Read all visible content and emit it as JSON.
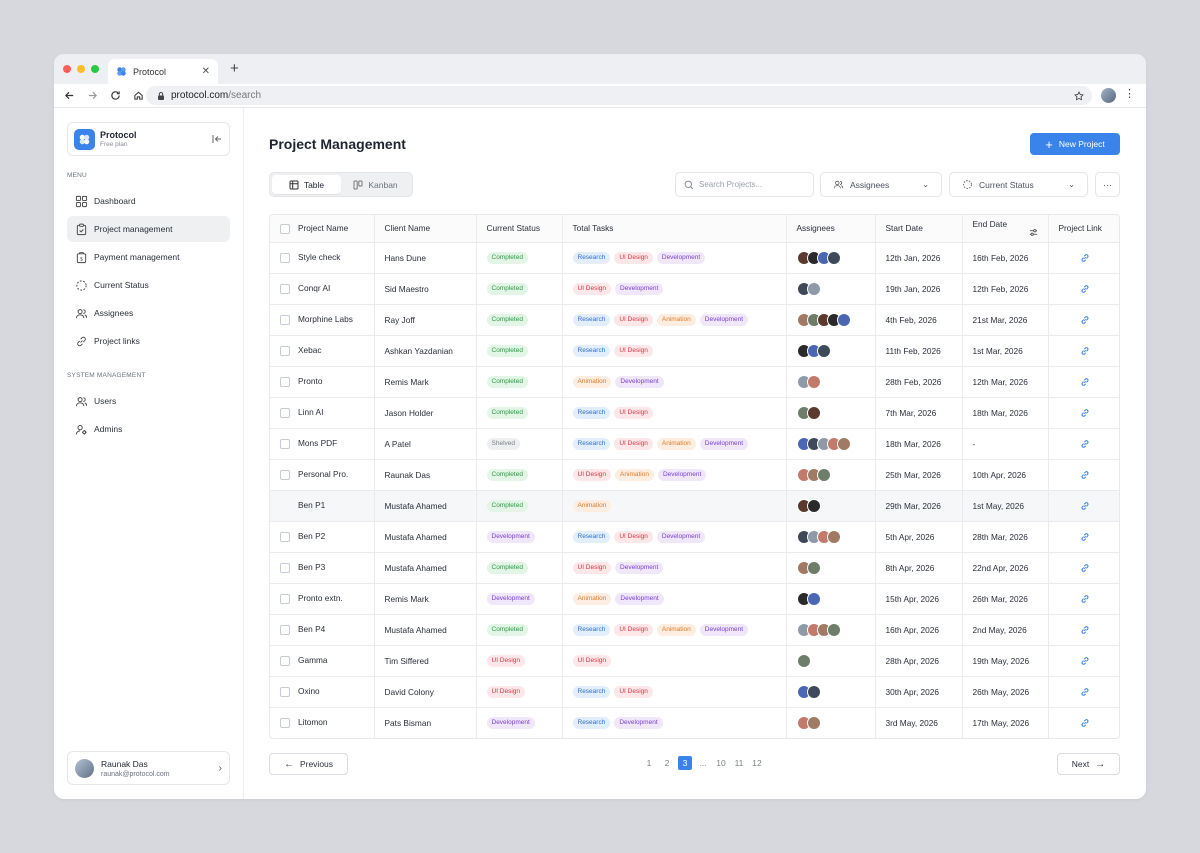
{
  "browser": {
    "tab_title": "Protocol",
    "url_host": "protocol.com",
    "url_path": "/search",
    "traffic_colors": [
      "#ff5f57",
      "#febc2e",
      "#28c840"
    ]
  },
  "sidebar": {
    "brand_name": "Protocol",
    "brand_plan": "Free plan",
    "menu_label": "MENU",
    "menu_items": [
      {
        "label": "Dashboard",
        "icon": "grid-icon"
      },
      {
        "label": "Project management",
        "icon": "clipboard-icon"
      },
      {
        "label": "Payment management",
        "icon": "wallet-icon"
      },
      {
        "label": "Current Status",
        "icon": "status-circle-icon"
      },
      {
        "label": "Assignees",
        "icon": "users-icon"
      },
      {
        "label": "Project links",
        "icon": "link-icon"
      }
    ],
    "system_label": "SYSTEM MANAGEMENT",
    "system_items": [
      {
        "label": "Users",
        "icon": "users-icon"
      },
      {
        "label": "Admins",
        "icon": "admin-icon"
      }
    ],
    "user": {
      "name": "Raunak Das",
      "email": "raunak@protocol.com"
    }
  },
  "main": {
    "title": "Project Management",
    "new_project_label": "New Project",
    "views": [
      "Table",
      "Kanban"
    ],
    "search_placeholder": "Search Projects...",
    "filter_assignees": "Assignees",
    "filter_status": "Current Status",
    "more": "···"
  },
  "table": {
    "columns": [
      "Project Name",
      "Client Name",
      "Current Status",
      "Total Tasks",
      "Assignees",
      "Start Date",
      "End Date",
      "Project Link"
    ],
    "rows": [
      {
        "name": "Style check",
        "client": "Hans Dune",
        "status": "Completed",
        "tasks": [
          "Research",
          "UI Design",
          "Development"
        ],
        "assignees": 4,
        "start": "12th Jan, 2026",
        "end": "16th Feb, 2026"
      },
      {
        "name": "Conqr AI",
        "client": "Sid Maestro",
        "status": "Completed",
        "tasks": [
          "UI Design",
          "Development"
        ],
        "assignees": 2,
        "start": "19th Jan, 2026",
        "end": "12th Feb, 2026"
      },
      {
        "name": "Morphine Labs",
        "client": "Ray Joff",
        "status": "Completed",
        "tasks": [
          "Research",
          "UI Design",
          "Animation",
          "Development"
        ],
        "assignees": 5,
        "start": "4th Feb, 2026",
        "end": "21st Mar, 2026"
      },
      {
        "name": "Xebac",
        "client": "Ashkan  Yazdanian",
        "status": "Completed",
        "tasks": [
          "Research",
          "UI Design"
        ],
        "assignees": 3,
        "start": "11th Feb, 2026",
        "end": "1st Mar, 2026"
      },
      {
        "name": "Pronto",
        "client": "Remis Mark",
        "status": "Completed",
        "tasks": [
          "Animation",
          "Development"
        ],
        "assignees": 2,
        "start": "28th Feb, 2026",
        "end": "12th Mar, 2026"
      },
      {
        "name": "Linn AI",
        "client": "Jason Holder",
        "status": "Completed",
        "tasks": [
          "Research",
          "UI Design"
        ],
        "assignees": 2,
        "start": "7th Mar, 2026",
        "end": "18th Mar, 2026"
      },
      {
        "name": "Mons PDF",
        "client": "A Patel",
        "status": "Shelved",
        "tasks": [
          "Research",
          "UI Design",
          "Animation",
          "Development"
        ],
        "assignees": 5,
        "start": "18th Mar, 2026",
        "end": "-"
      },
      {
        "name": "Personal Pro.",
        "client": "Raunak Das",
        "status": "Completed",
        "tasks": [
          "UI Design",
          "Animation",
          "Development"
        ],
        "assignees": 3,
        "start": "25th Mar, 2026",
        "end": "10th Apr, 2026"
      },
      {
        "name": "Ben P1",
        "client": "Mustafa Ahamed",
        "status": "Completed",
        "tasks": [
          "Animation"
        ],
        "assignees": 2,
        "start": "29th Mar, 2026",
        "end": "1st May, 2026"
      },
      {
        "name": "Ben P2",
        "client": "Mustafa Ahamed",
        "status": "Development",
        "tasks": [
          "Research",
          "UI Design",
          "Development"
        ],
        "assignees": 4,
        "start": "5th Apr, 2026",
        "end": "28th Mar, 2026"
      },
      {
        "name": "Ben P3",
        "client": "Mustafa Ahamed",
        "status": "Completed",
        "tasks": [
          "UI Design",
          "Development"
        ],
        "assignees": 2,
        "start": "8th Apr, 2026",
        "end": "22nd Apr, 2026"
      },
      {
        "name": "Pronto extn.",
        "client": "Remis Mark",
        "status": "Development",
        "tasks": [
          "Animation",
          "Development"
        ],
        "assignees": 2,
        "start": "15th Apr, 2026",
        "end": "26th Mar, 2026"
      },
      {
        "name": "Ben P4",
        "client": "Mustafa Ahamed",
        "status": "Completed",
        "tasks": [
          "Research",
          "UI Design",
          "Animation",
          "Development"
        ],
        "assignees": 4,
        "start": "16th Apr, 2026",
        "end": "2nd May, 2026"
      },
      {
        "name": "Gamma",
        "client": "Tim Siffered",
        "status": "UI Design",
        "tasks": [
          "UI Design"
        ],
        "assignees": 1,
        "start": "28th Apr, 2026",
        "end": "19th May, 2026"
      },
      {
        "name": "Oxino",
        "client": "David Colony",
        "status": "UI Design",
        "tasks": [
          "Research",
          "UI Design"
        ],
        "assignees": 2,
        "start": "30th Apr, 2026",
        "end": "26th May, 2026"
      },
      {
        "name": "Litomon",
        "client": "Pats Bisman",
        "status": "Development",
        "tasks": [
          "Research",
          "Development"
        ],
        "assignees": 2,
        "start": "3rd May, 2026",
        "end": "17th May, 2026"
      }
    ]
  },
  "pagination": {
    "prev_label": "Previous",
    "next_label": "Next",
    "pages": [
      "1",
      "2",
      "3",
      "...",
      "10",
      "11",
      "12"
    ],
    "current": "3"
  }
}
